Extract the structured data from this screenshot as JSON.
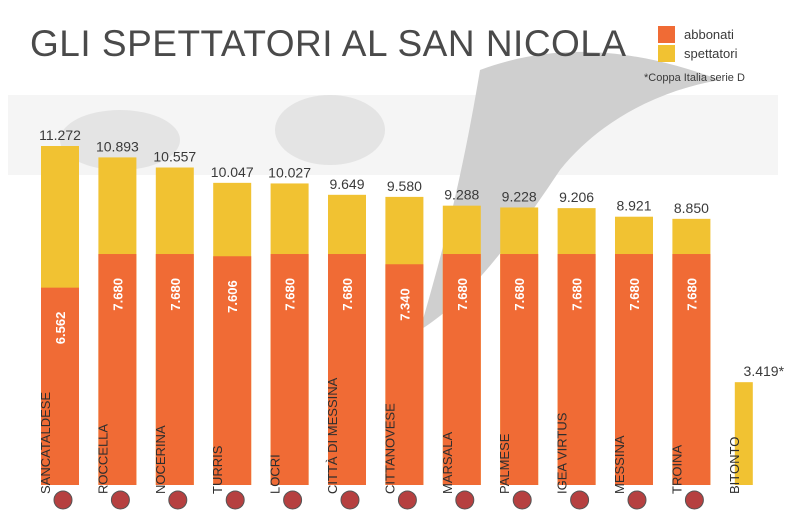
{
  "chart_data": {
    "type": "bar",
    "title": "GLI SPETTATORI AL SAN NICOLA",
    "note": "*Coppa Italia serie D",
    "colors": {
      "abbonati": "#f06b35",
      "spettatori": "#f1c232"
    },
    "series": [
      {
        "name": "abbonati",
        "values": [
          6562,
          7680,
          7680,
          7606,
          7680,
          7680,
          7340,
          7680,
          7680,
          7680,
          7680,
          7680,
          null
        ]
      },
      {
        "name": "spettatori",
        "values": [
          11272,
          10893,
          10557,
          10047,
          10027,
          9649,
          9580,
          9288,
          9228,
          9206,
          8921,
          8850,
          3419
        ]
      }
    ],
    "categories": [
      "SANCATALDESE",
      "ROCCELLA",
      "NOCERINA",
      "TURRIS",
      "LOCRI",
      "CITTÀ DI MESSINA",
      "CITTANOVESE",
      "MARSALA",
      "PALMESE",
      "IGEA VIRTUS",
      "MESSINA",
      "TROINA",
      "BITONTO"
    ],
    "total_labels": [
      "11.272",
      "10.893",
      "10.557",
      "10.047",
      "10.027",
      "9.649",
      "9.580",
      "9.288",
      "9.228",
      "9.206",
      "8.921",
      "8.850",
      "3.419*"
    ],
    "abbonati_labels": [
      "6.562",
      "7.680",
      "7.680",
      "7.606",
      "7.680",
      "7.680",
      "7.340",
      "7.680",
      "7.680",
      "7.680",
      "7.680",
      "7.680",
      ""
    ],
    "legend": [
      "abbonati",
      "spettatori"
    ],
    "legend_position": "top-right",
    "ylim": [
      0,
      11500
    ],
    "grid": false
  }
}
